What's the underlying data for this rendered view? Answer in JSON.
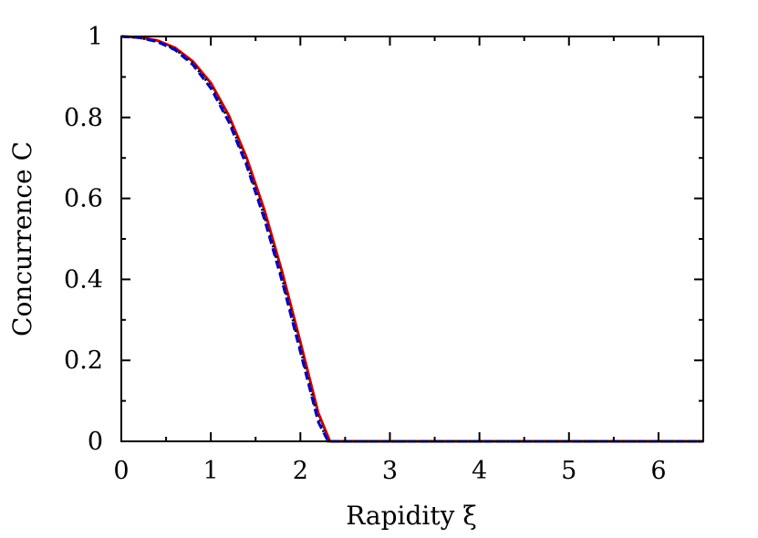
{
  "chart_data": {
    "type": "line",
    "title": "",
    "xlabel": "Rapidity ξ",
    "ylabel": "Concurrence C",
    "xlim": [
      0,
      6.5
    ],
    "ylim": [
      0,
      1
    ],
    "x_ticks": [
      0,
      1,
      2,
      3,
      4,
      5,
      6
    ],
    "y_ticks": [
      0,
      0.2,
      0.4,
      0.6,
      0.8,
      1
    ],
    "x_tick_labels": [
      "0",
      "1",
      "2",
      "3",
      "4",
      "5",
      "6"
    ],
    "y_tick_labels": [
      "0",
      "0.2",
      "0.4",
      "0.6",
      "0.8",
      "1"
    ],
    "x_minor_step": 0.5,
    "y_minor_step": 0.1,
    "grid": false,
    "legend": "none",
    "series": [
      {
        "color": "#cc0000",
        "style": "solid",
        "x": [
          0,
          0.2,
          0.4,
          0.6,
          0.8,
          1.0,
          1.2,
          1.4,
          1.6,
          1.8,
          2.0,
          2.2,
          2.33,
          3,
          4,
          5,
          6,
          6.5
        ],
        "y": [
          1.0,
          0.998,
          0.99,
          0.972,
          0.938,
          0.885,
          0.805,
          0.7,
          0.57,
          0.415,
          0.245,
          0.07,
          0.0,
          0.0,
          0.0,
          0.0,
          0.0,
          0.0
        ]
      },
      {
        "color": "#000000",
        "style": "dotted",
        "x": [
          0,
          0.2,
          0.4,
          0.6,
          0.8,
          1.0,
          1.2,
          1.4,
          1.6,
          1.8,
          2.0,
          2.2,
          2.31,
          3,
          4,
          5,
          6,
          6.5
        ],
        "y": [
          1.0,
          0.997,
          0.988,
          0.969,
          0.933,
          0.877,
          0.795,
          0.688,
          0.556,
          0.4,
          0.229,
          0.055,
          0.0,
          0.0,
          0.0,
          0.0,
          0.0,
          0.0
        ]
      },
      {
        "color": "#0000cc",
        "style": "dashed",
        "x": [
          0,
          0.2,
          0.4,
          0.6,
          0.8,
          1.0,
          1.2,
          1.4,
          1.6,
          1.8,
          2.0,
          2.2,
          2.31,
          3,
          4,
          5,
          6,
          6.5
        ],
        "y": [
          1.0,
          0.997,
          0.987,
          0.967,
          0.93,
          0.872,
          0.789,
          0.681,
          0.548,
          0.392,
          0.221,
          0.048,
          0.0,
          0.0,
          0.0,
          0.0,
          0.0,
          0.0
        ]
      }
    ]
  }
}
